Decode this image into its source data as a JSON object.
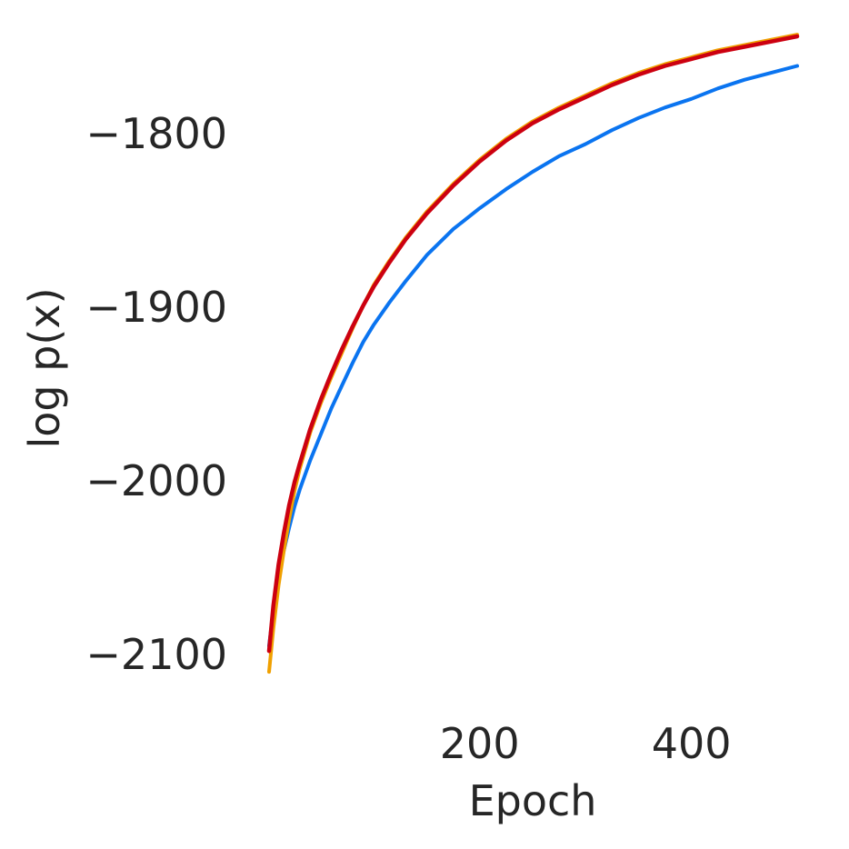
{
  "chart_data": {
    "type": "line",
    "title": "",
    "xlabel": "Epoch",
    "ylabel": "log p(x)",
    "xlim": [
      1,
      500
    ],
    "ylim": [
      -2100,
      -1765
    ],
    "xticks": [
      200,
      400
    ],
    "xtick_labels": [
      "200",
      "400"
    ],
    "yticks": [
      -1800,
      -1900,
      -2000,
      -2100
    ],
    "ytick_labels": [
      "−1800",
      "−1900",
      "−2000",
      "−2100"
    ],
    "grid": false,
    "legend": "none",
    "x": [
      1,
      5,
      10,
      15,
      20,
      25,
      30,
      40,
      50,
      60,
      70,
      80,
      90,
      100,
      115,
      130,
      150,
      175,
      200,
      225,
      250,
      275,
      300,
      325,
      350,
      375,
      400,
      425,
      450,
      475,
      500
    ],
    "series": [
      {
        "color": "#0a74f0",
        "values": [
          -2095,
          -2075,
          -2055,
          -2040,
          -2027,
          -2015,
          -2005,
          -1988,
          -1973,
          -1958,
          -1945,
          -1932,
          -1920,
          -1910,
          -1897,
          -1885,
          -1870,
          -1855,
          -1843,
          -1832,
          -1822,
          -1813,
          -1806,
          -1798,
          -1791,
          -1785,
          -1780,
          -1774,
          -1769,
          -1765,
          -1761
        ]
      },
      {
        "color": "#f0a000",
        "values": [
          -2110,
          -2085,
          -2060,
          -2040,
          -2022,
          -2006,
          -1993,
          -1972,
          -1955,
          -1940,
          -1926,
          -1912,
          -1899,
          -1887,
          -1873,
          -1860,
          -1845,
          -1829,
          -1815,
          -1803,
          -1793,
          -1785,
          -1778,
          -1771,
          -1765,
          -1760,
          -1756,
          -1752,
          -1749,
          -1746,
          -1743
        ]
      },
      {
        "color": "#cc0010",
        "values": [
          -2098,
          -2072,
          -2048,
          -2030,
          -2014,
          -2001,
          -1990,
          -1970,
          -1953,
          -1938,
          -1924,
          -1911,
          -1899,
          -1888,
          -1874,
          -1861,
          -1846,
          -1830,
          -1816,
          -1804,
          -1794,
          -1786,
          -1779,
          -1772,
          -1766,
          -1761,
          -1757,
          -1753,
          -1750,
          -1747,
          -1744
        ]
      }
    ]
  }
}
